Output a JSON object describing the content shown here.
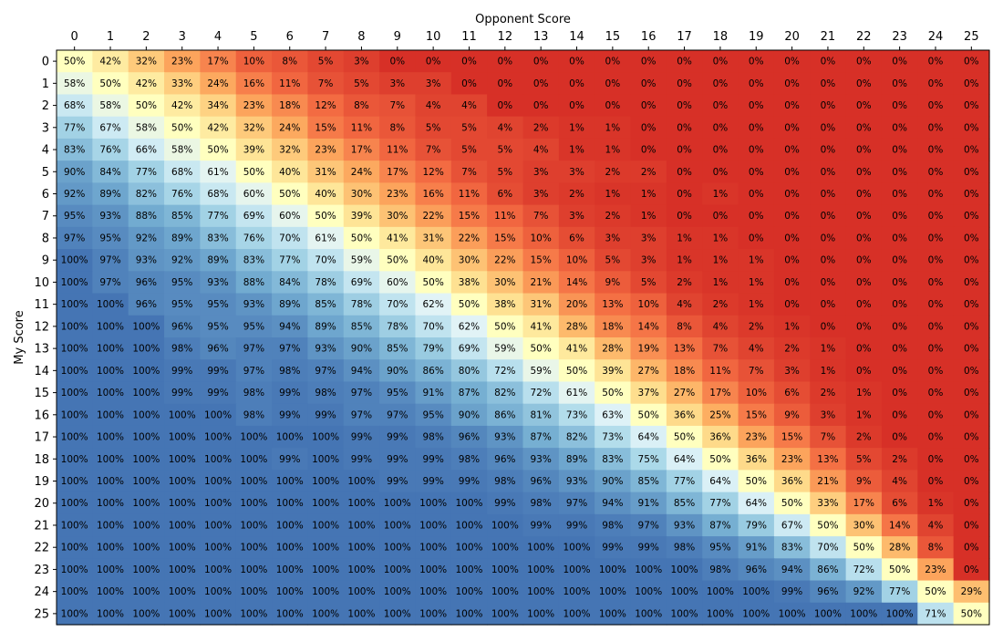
{
  "chart_data": {
    "type": "heatmap",
    "xlabel": "Opponent Score",
    "ylabel": "My Score",
    "x_tick_labels": [
      "0",
      "1",
      "2",
      "3",
      "4",
      "5",
      "6",
      "7",
      "8",
      "9",
      "10",
      "11",
      "12",
      "13",
      "14",
      "15",
      "16",
      "17",
      "18",
      "19",
      "20",
      "21",
      "22",
      "23",
      "24",
      "25"
    ],
    "y_tick_labels": [
      "0",
      "1",
      "2",
      "3",
      "4",
      "5",
      "6",
      "7",
      "8",
      "9",
      "10",
      "11",
      "12",
      "13",
      "14",
      "15",
      "16",
      "17",
      "18",
      "19",
      "20",
      "21",
      "22",
      "23",
      "24",
      "25"
    ],
    "x_axis_position": "top",
    "value_format": "percent",
    "colormap": "RdYlBu",
    "colors": {
      "low": "#d73027",
      "mid": "#ffffbf",
      "high": "#4575b4"
    },
    "vmin": 0,
    "vmax": 100,
    "grid": false,
    "values": [
      [
        50,
        42,
        32,
        23,
        17,
        10,
        8,
        5,
        3,
        0,
        0,
        0,
        0,
        0,
        0,
        0,
        0,
        0,
        0,
        0,
        0,
        0,
        0,
        0,
        0,
        0
      ],
      [
        58,
        50,
        42,
        33,
        24,
        16,
        11,
        7,
        5,
        3,
        3,
        0,
        0,
        0,
        0,
        0,
        0,
        0,
        0,
        0,
        0,
        0,
        0,
        0,
        0,
        0
      ],
      [
        68,
        58,
        50,
        42,
        34,
        23,
        18,
        12,
        8,
        7,
        4,
        4,
        0,
        0,
        0,
        0,
        0,
        0,
        0,
        0,
        0,
        0,
        0,
        0,
        0,
        0
      ],
      [
        77,
        67,
        58,
        50,
        42,
        32,
        24,
        15,
        11,
        8,
        5,
        5,
        4,
        2,
        1,
        1,
        0,
        0,
        0,
        0,
        0,
        0,
        0,
        0,
        0,
        0
      ],
      [
        83,
        76,
        66,
        58,
        50,
        39,
        32,
        23,
        17,
        11,
        7,
        5,
        5,
        4,
        1,
        1,
        0,
        0,
        0,
        0,
        0,
        0,
        0,
        0,
        0,
        0
      ],
      [
        90,
        84,
        77,
        68,
        61,
        50,
        40,
        31,
        24,
        17,
        12,
        7,
        5,
        3,
        3,
        2,
        2,
        0,
        0,
        0,
        0,
        0,
        0,
        0,
        0,
        0
      ],
      [
        92,
        89,
        82,
        76,
        68,
        60,
        50,
        40,
        30,
        23,
        16,
        11,
        6,
        3,
        2,
        1,
        1,
        0,
        1,
        0,
        0,
        0,
        0,
        0,
        0,
        0
      ],
      [
        95,
        93,
        88,
        85,
        77,
        69,
        60,
        50,
        39,
        30,
        22,
        15,
        11,
        7,
        3,
        2,
        1,
        0,
        0,
        0,
        0,
        0,
        0,
        0,
        0,
        0
      ],
      [
        97,
        95,
        92,
        89,
        83,
        76,
        70,
        61,
        50,
        41,
        31,
        22,
        15,
        10,
        6,
        3,
        3,
        1,
        1,
        0,
        0,
        0,
        0,
        0,
        0,
        0
      ],
      [
        100,
        97,
        93,
        92,
        89,
        83,
        77,
        70,
        59,
        50,
        40,
        30,
        22,
        15,
        10,
        5,
        3,
        1,
        1,
        1,
        0,
        0,
        0,
        0,
        0,
        0
      ],
      [
        100,
        97,
        96,
        95,
        93,
        88,
        84,
        78,
        69,
        60,
        50,
        38,
        30,
        21,
        14,
        9,
        5,
        2,
        1,
        1,
        0,
        0,
        0,
        0,
        0,
        0
      ],
      [
        100,
        100,
        96,
        95,
        95,
        93,
        89,
        85,
        78,
        70,
        62,
        50,
        38,
        31,
        20,
        13,
        10,
        4,
        2,
        1,
        0,
        0,
        0,
        0,
        0,
        0
      ],
      [
        100,
        100,
        100,
        96,
        95,
        95,
        94,
        89,
        85,
        78,
        70,
        62,
        50,
        41,
        28,
        18,
        14,
        8,
        4,
        2,
        1,
        0,
        0,
        0,
        0,
        0
      ],
      [
        100,
        100,
        100,
        98,
        96,
        97,
        97,
        93,
        90,
        85,
        79,
        69,
        59,
        50,
        41,
        28,
        19,
        13,
        7,
        4,
        2,
        1,
        0,
        0,
        0,
        0
      ],
      [
        100,
        100,
        100,
        99,
        99,
        97,
        98,
        97,
        94,
        90,
        86,
        80,
        72,
        59,
        50,
        39,
        27,
        18,
        11,
        7,
        3,
        1,
        0,
        0,
        0,
        0
      ],
      [
        100,
        100,
        100,
        99,
        99,
        98,
        99,
        98,
        97,
        95,
        91,
        87,
        82,
        72,
        61,
        50,
        37,
        27,
        17,
        10,
        6,
        2,
        1,
        0,
        0,
        0
      ],
      [
        100,
        100,
        100,
        100,
        100,
        98,
        99,
        99,
        97,
        97,
        95,
        90,
        86,
        81,
        73,
        63,
        50,
        36,
        25,
        15,
        9,
        3,
        1,
        0,
        0,
        0
      ],
      [
        100,
        100,
        100,
        100,
        100,
        100,
        100,
        100,
        99,
        99,
        98,
        96,
        93,
        87,
        82,
        73,
        64,
        50,
        36,
        23,
        15,
        7,
        2,
        0,
        0,
        0
      ],
      [
        100,
        100,
        100,
        100,
        100,
        100,
        99,
        100,
        99,
        99,
        99,
        98,
        96,
        93,
        89,
        83,
        75,
        64,
        50,
        36,
        23,
        13,
        5,
        2,
        0,
        0
      ],
      [
        100,
        100,
        100,
        100,
        100,
        100,
        100,
        100,
        100,
        99,
        99,
        99,
        98,
        96,
        93,
        90,
        85,
        77,
        64,
        50,
        36,
        21,
        9,
        4,
        0,
        0
      ],
      [
        100,
        100,
        100,
        100,
        100,
        100,
        100,
        100,
        100,
        100,
        100,
        100,
        99,
        98,
        97,
        94,
        91,
        85,
        77,
        64,
        50,
        33,
        17,
        6,
        1,
        0
      ],
      [
        100,
        100,
        100,
        100,
        100,
        100,
        100,
        100,
        100,
        100,
        100,
        100,
        100,
        99,
        99,
        98,
        97,
        93,
        87,
        79,
        67,
        50,
        30,
        14,
        4,
        0
      ],
      [
        100,
        100,
        100,
        100,
        100,
        100,
        100,
        100,
        100,
        100,
        100,
        100,
        100,
        100,
        100,
        99,
        99,
        98,
        95,
        91,
        83,
        70,
        50,
        28,
        8,
        0
      ],
      [
        100,
        100,
        100,
        100,
        100,
        100,
        100,
        100,
        100,
        100,
        100,
        100,
        100,
        100,
        100,
        100,
        100,
        100,
        98,
        96,
        94,
        86,
        72,
        50,
        23,
        0
      ],
      [
        100,
        100,
        100,
        100,
        100,
        100,
        100,
        100,
        100,
        100,
        100,
        100,
        100,
        100,
        100,
        100,
        100,
        100,
        100,
        100,
        99,
        96,
        92,
        77,
        50,
        29
      ],
      [
        100,
        100,
        100,
        100,
        100,
        100,
        100,
        100,
        100,
        100,
        100,
        100,
        100,
        100,
        100,
        100,
        100,
        100,
        100,
        100,
        100,
        100,
        100,
        100,
        71,
        50
      ]
    ]
  }
}
